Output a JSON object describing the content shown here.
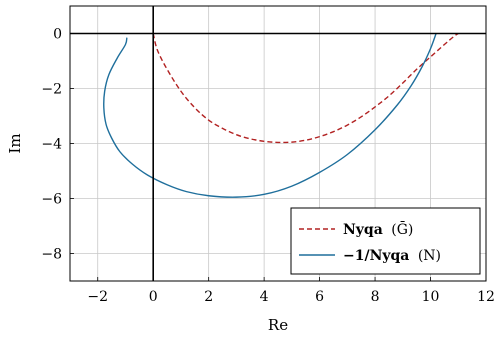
{
  "chart_data": {
    "type": "line",
    "xlabel": "Re",
    "ylabel": "Im",
    "xlim": [
      -3,
      12
    ],
    "ylim": [
      -9,
      1
    ],
    "x_ticks": [
      -2,
      0,
      2,
      4,
      6,
      8,
      10,
      12
    ],
    "y_ticks": [
      0,
      -2,
      -4,
      -6,
      -8
    ],
    "x_tick_labels": [
      "−2",
      "0",
      "2",
      "4",
      "6",
      "8",
      "10",
      "12"
    ],
    "y_tick_labels": [
      "0",
      "−2",
      "−4",
      "−6",
      "−8"
    ],
    "grid": true,
    "legend_position": "bottom-right",
    "series": [
      {
        "name": "Nyqa (Ḡ)",
        "name_main": "Nyqa",
        "name_arg": "(Ḡ)",
        "color": "#b22222",
        "dash": "dashed",
        "x": [
          0.0,
          0.15,
          0.5,
          1.0,
          1.5,
          2.0,
          2.5,
          3.0,
          3.5,
          4.0,
          4.5,
          5.0,
          5.5,
          6.0,
          6.5,
          7.0,
          7.5,
          8.0,
          8.5,
          9.0,
          9.5,
          10.0,
          10.5,
          10.85,
          11.0
        ],
        "y": [
          0.0,
          -0.6,
          -1.3,
          -2.1,
          -2.7,
          -3.15,
          -3.45,
          -3.68,
          -3.83,
          -3.92,
          -3.96,
          -3.95,
          -3.88,
          -3.75,
          -3.57,
          -3.33,
          -3.03,
          -2.67,
          -2.27,
          -1.8,
          -1.3,
          -0.85,
          -0.4,
          -0.1,
          0.0
        ]
      },
      {
        "name": "−1/Nyqa (N)",
        "name_main": "−1/Nyqa",
        "name_arg": "(N)",
        "color": "#1f6f9c",
        "dash": "solid",
        "x": [
          -0.95,
          -1.0,
          -1.3,
          -1.6,
          -1.75,
          -1.78,
          -1.7,
          -1.5,
          -1.2,
          -0.75,
          -0.2,
          0.5,
          1.2,
          2.0,
          3.0,
          4.0,
          5.0,
          6.0,
          7.0,
          8.0,
          8.8,
          9.3,
          9.7,
          10.0,
          10.2
        ],
        "y": [
          -0.15,
          -0.4,
          -0.9,
          -1.5,
          -2.1,
          -2.7,
          -3.3,
          -3.8,
          -4.3,
          -4.75,
          -5.15,
          -5.5,
          -5.75,
          -5.9,
          -5.95,
          -5.85,
          -5.55,
          -5.05,
          -4.4,
          -3.5,
          -2.6,
          -1.9,
          -1.2,
          -0.55,
          0.0
        ]
      }
    ]
  }
}
